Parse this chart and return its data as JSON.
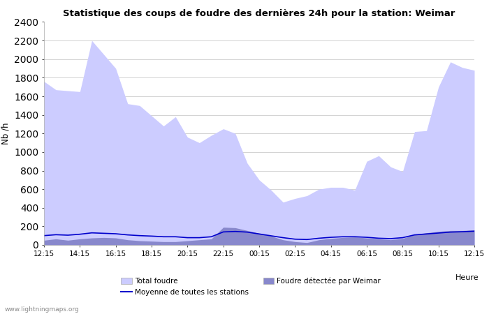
{
  "title": "Statistique des coups de foudre des dernières 24h pour la station: Weimar",
  "ylabel": "Nb /h",
  "xlabel": "Heure",
  "watermark": "www.lightningmaps.org",
  "x_labels": [
    "12:15",
    "14:15",
    "16:15",
    "18:15",
    "20:15",
    "22:15",
    "00:15",
    "02:15",
    "04:15",
    "06:15",
    "08:15",
    "10:15",
    "12:15"
  ],
  "ylim": [
    0,
    2400
  ],
  "yticks": [
    0,
    200,
    400,
    600,
    800,
    1000,
    1200,
    1400,
    1600,
    1800,
    2000,
    2200,
    2400
  ],
  "color_total": "#ccccff",
  "color_detected": "#8888cc",
  "color_mean": "#0000cc",
  "bg_color": "#ffffff",
  "plot_bg_color": "#ffffff",
  "total_foudre": [
    1760,
    1670,
    1660,
    1650,
    2200,
    2050,
    1900,
    1520,
    1500,
    1390,
    1280,
    1380,
    1160,
    1100,
    1180,
    1250,
    1200,
    880,
    700,
    590,
    460,
    500,
    530,
    600,
    620,
    620,
    590,
    900,
    960,
    840,
    790,
    1220,
    1230,
    1700,
    1970,
    1910,
    1880
  ],
  "detected_weimar": [
    50,
    65,
    50,
    65,
    75,
    80,
    75,
    55,
    45,
    40,
    35,
    35,
    45,
    55,
    65,
    190,
    185,
    155,
    125,
    95,
    55,
    35,
    25,
    55,
    70,
    80,
    85,
    75,
    65,
    55,
    70,
    110,
    130,
    145,
    155,
    155,
    160
  ],
  "mean_line": [
    100,
    110,
    105,
    115,
    130,
    125,
    120,
    108,
    100,
    95,
    88,
    88,
    78,
    78,
    88,
    140,
    145,
    138,
    118,
    98,
    78,
    62,
    58,
    72,
    82,
    88,
    88,
    82,
    72,
    68,
    78,
    108,
    118,
    128,
    138,
    142,
    148
  ],
  "n_points": 37
}
